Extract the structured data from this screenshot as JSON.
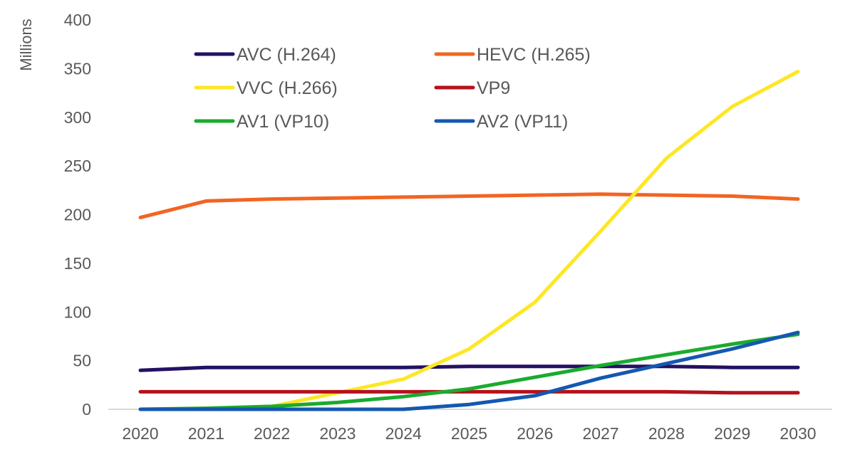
{
  "chart_data": {
    "type": "line",
    "title": "",
    "xlabel": "",
    "ylabel": "Millions",
    "ylim": [
      0,
      400
    ],
    "yticks": [
      0,
      50,
      100,
      150,
      200,
      250,
      300,
      350,
      400
    ],
    "grid": false,
    "legend_placement": "top-left",
    "categories": [
      "2020",
      "2021",
      "2022",
      "2023",
      "2024",
      "2025",
      "2026",
      "2027",
      "2028",
      "2029",
      "2030"
    ],
    "series": [
      {
        "name": "AVC (H.264)",
        "color": "#241162",
        "values": [
          40,
          43,
          43,
          43,
          43,
          44,
          44,
          44,
          44,
          43,
          43
        ]
      },
      {
        "name": "HEVC (H.265)",
        "color": "#F26522",
        "values": [
          197,
          214,
          216,
          217,
          218,
          219,
          220,
          221,
          220,
          219,
          216
        ]
      },
      {
        "name": "VVC (H.266)",
        "color": "#FDE725",
        "values": [
          0,
          1,
          3,
          17,
          31,
          62,
          110,
          183,
          258,
          311,
          347
        ]
      },
      {
        "name": "VP9",
        "color": "#B5121B",
        "values": [
          18,
          18,
          18,
          18,
          18,
          18,
          18,
          18,
          18,
          17,
          17
        ]
      },
      {
        "name": "AV1 (VP10)",
        "color": "#1AAB2E",
        "values": [
          0,
          1,
          3,
          7,
          13,
          21,
          33,
          45,
          56,
          67,
          77
        ]
      },
      {
        "name": "AV2 (VP11)",
        "color": "#1458B0",
        "values": [
          0,
          0,
          0,
          0,
          0,
          5,
          14,
          32,
          47,
          62,
          79
        ]
      }
    ]
  }
}
